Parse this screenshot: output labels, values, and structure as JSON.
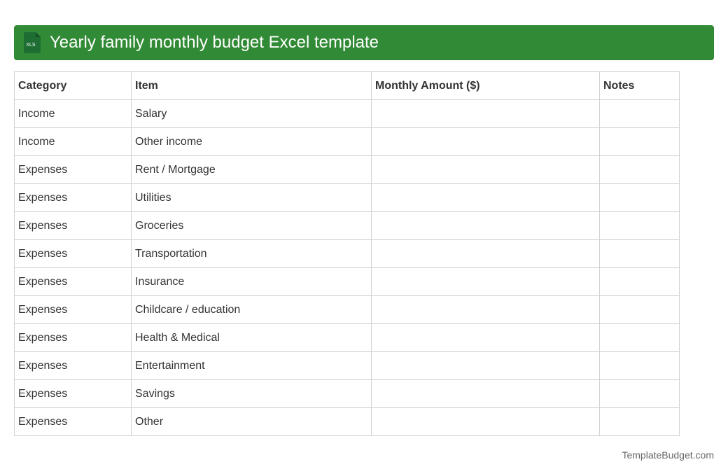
{
  "title": "Yearly family monthly budget Excel template",
  "icon": {
    "name": "xls-file-icon",
    "label": "XLS",
    "color": "#1e6e34"
  },
  "colors": {
    "title_bar": "#318a35",
    "border": "#d2d2d2"
  },
  "table": {
    "headers": [
      "Category",
      "Item",
      "Monthly Amount ($)",
      "Notes"
    ],
    "rows": [
      [
        "Income",
        "Salary",
        "",
        ""
      ],
      [
        "Income",
        "Other income",
        "",
        ""
      ],
      [
        "Expenses",
        "Rent / Mortgage",
        "",
        ""
      ],
      [
        "Expenses",
        "Utilities",
        "",
        ""
      ],
      [
        "Expenses",
        "Groceries",
        "",
        ""
      ],
      [
        "Expenses",
        "Transportation",
        "",
        ""
      ],
      [
        "Expenses",
        "Insurance",
        "",
        ""
      ],
      [
        "Expenses",
        "Childcare / education",
        "",
        ""
      ],
      [
        "Expenses",
        "Health & Medical",
        "",
        ""
      ],
      [
        "Expenses",
        "Entertainment",
        "",
        ""
      ],
      [
        "Expenses",
        "Savings",
        "",
        ""
      ],
      [
        "Expenses",
        "Other",
        "",
        ""
      ]
    ]
  },
  "footer": "TemplateBudget.com"
}
